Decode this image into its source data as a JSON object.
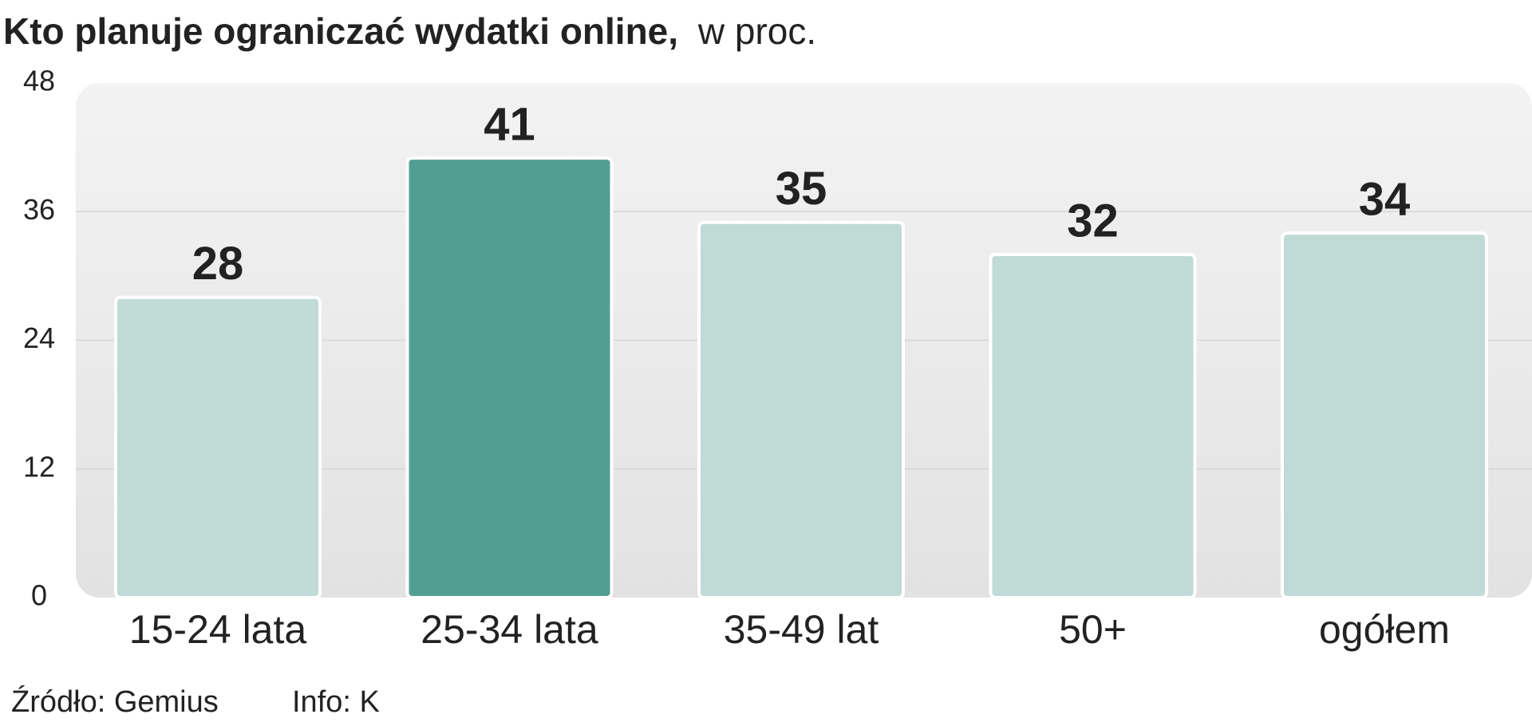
{
  "chart_data": {
    "type": "bar",
    "title": "Kto planuje ograniczać wydatki online,",
    "subtitle": "w proc.",
    "categories": [
      "15-24 lata",
      "25-34 lata",
      "35-49 lat",
      "50+",
      "ogółem"
    ],
    "values": [
      28,
      41,
      35,
      32,
      34
    ],
    "colors": [
      "#c0dad6",
      "#519e93",
      "#c0dad6",
      "#c0dad6",
      "#c0dad6"
    ],
    "ylim": [
      0,
      48
    ],
    "yticks": [
      0,
      12,
      24,
      36,
      48
    ],
    "grid": true,
    "source": "Źródło: Gemius",
    "credit": "Info: K"
  }
}
